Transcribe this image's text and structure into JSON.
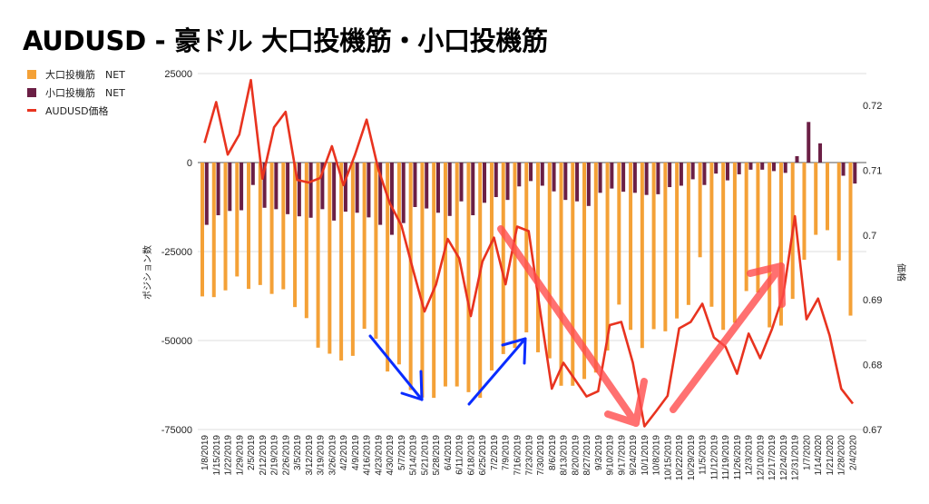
{
  "colors": {
    "large": "#f4a137",
    "small": "#6b1f45",
    "price": "#e8331f",
    "grid": "#dddddd",
    "blue_arrow": "#0a2cff",
    "red_arrow": "#ff4d4d"
  },
  "chart_data": {
    "type": "bar+line",
    "title": "AUDUSD - 豪ドル 大口投機筋・小口投機筋",
    "ylabel": "ポジション数",
    "y2label": "価格",
    "ylim": [
      -75000,
      25000
    ],
    "y2lim": [
      0.67,
      0.72
    ],
    "yticks": [
      "25000",
      "0",
      "-25000",
      "-50000",
      "-75000"
    ],
    "y2ticks": [
      "0.72",
      "0.71",
      "0.7",
      "0.69",
      "0.68",
      "0.67"
    ],
    "grid": true,
    "legend_position": "top-left",
    "legend": [
      "大口投機筋　NET",
      "小口投機筋　NET",
      "AUDUSD価格"
    ],
    "categories": [
      "1/8/2019",
      "1/15/2019",
      "1/22/2019",
      "1/29/2019",
      "2/5/2019",
      "2/12/2019",
      "2/19/2019",
      "2/26/2019",
      "3/5/2019",
      "3/12/2019",
      "3/19/2019",
      "3/26/2019",
      "4/2/2019",
      "4/9/2019",
      "4/16/2019",
      "4/23/2019",
      "4/30/2019",
      "5/7/2019",
      "5/14/2019",
      "5/21/2019",
      "5/28/2019",
      "6/4/2019",
      "6/11/2019",
      "6/18/2019",
      "6/25/2019",
      "7/2/2019",
      "7/9/2019",
      "7/16/2019",
      "7/23/2019",
      "7/30/2019",
      "8/6/2019",
      "8/13/2019",
      "8/20/2019",
      "8/27/2019",
      "9/3/2019",
      "9/10/2019",
      "9/17/2019",
      "9/24/2019",
      "10/1/2019",
      "10/8/2019",
      "10/15/2019",
      "10/22/2019",
      "10/29/2019",
      "11/5/2019",
      "11/12/2019",
      "11/19/2019",
      "11/26/2019",
      "12/3/2019",
      "12/10/2019",
      "12/17/2019",
      "12/24/2019",
      "12/31/2019",
      "1/7/2020",
      "1/14/2020",
      "1/21/2020",
      "1/28/2020",
      "2/4/2020"
    ],
    "series": [
      {
        "name": "大口投機筋　NET",
        "type": "bar",
        "axis": "left",
        "values": [
          -37600,
          -37800,
          -35900,
          -32000,
          -35500,
          -34400,
          -36900,
          -35600,
          -40600,
          -43700,
          -52000,
          -53700,
          -55600,
          -54300,
          -46700,
          -49500,
          -58700,
          -56700,
          -63900,
          -66000,
          -66100,
          -62900,
          -62900,
          -64500,
          -66100,
          -58400,
          -53800,
          -52100,
          -47700,
          -53300,
          -55000,
          -62700,
          -62700,
          -60800,
          -59000,
          -52800,
          -39900,
          -47000,
          -52100,
          -46800,
          -47400,
          -43800,
          -40000,
          -26600,
          -40500,
          -47000,
          -45000,
          -36100,
          -36500,
          -46300,
          -45800,
          -38300,
          -27300,
          -20300,
          -19000,
          -27500,
          -43000
        ]
      },
      {
        "name": "小口投機筋　NET",
        "type": "bar",
        "axis": "left",
        "values": [
          -17500,
          -14800,
          -13600,
          -13400,
          -6300,
          -12700,
          -13100,
          -14500,
          -15100,
          -15500,
          -13100,
          -16300,
          -13800,
          -14100,
          -15400,
          -17500,
          -20300,
          -17000,
          -12500,
          -12900,
          -14100,
          -15000,
          -10900,
          -14800,
          -11300,
          -9700,
          -10500,
          -6700,
          -5200,
          -6500,
          -8100,
          -10500,
          -10900,
          -12200,
          -8500,
          -7300,
          -8200,
          -8500,
          -9100,
          -8900,
          -6900,
          -6500,
          -4700,
          -6300,
          -3100,
          -5000,
          -3300,
          -2000,
          -2000,
          -2400,
          -2900,
          1800,
          11400,
          5400,
          0,
          -3700,
          -5900
        ]
      },
      {
        "name": "AUDUSD価格",
        "type": "line",
        "axis": "right",
        "values": [
          0.7142,
          0.7205,
          0.7124,
          0.7155,
          0.7239,
          0.7087,
          0.7166,
          0.719,
          0.7085,
          0.7081,
          0.7088,
          0.7137,
          0.7077,
          0.7124,
          0.7178,
          0.7102,
          0.7049,
          0.7015,
          0.6947,
          0.6882,
          0.6924,
          0.6994,
          0.6964,
          0.6875,
          0.6959,
          0.6996,
          0.6924,
          0.7013,
          0.7006,
          0.6882,
          0.6763,
          0.6803,
          0.6777,
          0.6751,
          0.6759,
          0.6861,
          0.6866,
          0.6803,
          0.6705,
          0.6728,
          0.6752,
          0.6856,
          0.6866,
          0.6894,
          0.6842,
          0.6828,
          0.6786,
          0.6848,
          0.681,
          0.6854,
          0.6908,
          0.7029,
          0.687,
          0.6902,
          0.6845,
          0.6763,
          0.674
        ]
      }
    ]
  }
}
